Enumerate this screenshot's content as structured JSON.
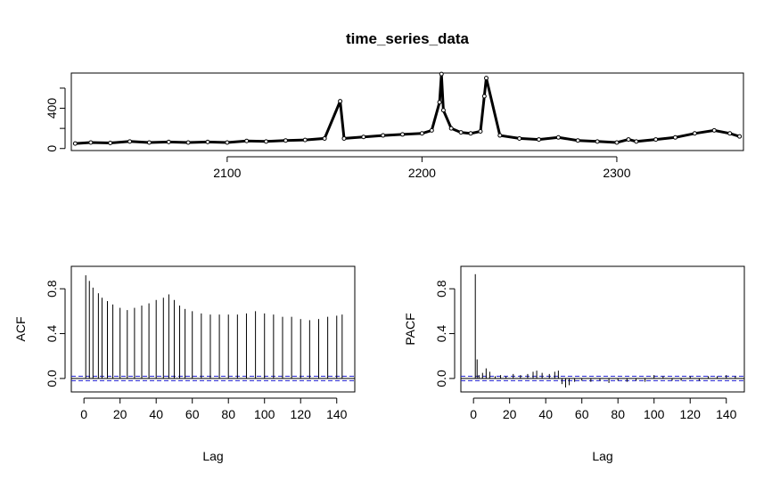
{
  "figure": {
    "title": "time_series_data"
  },
  "colors": {
    "series": "#000000",
    "confidence_band": "#1f1fd0",
    "background": "#ffffff"
  },
  "chart_data": [
    {
      "type": "line",
      "name": "time_series_data",
      "title": "time_series_data",
      "xlabel": "",
      "ylabel": "",
      "xlim": [
        2020,
        2365
      ],
      "ylim": [
        -20,
        750
      ],
      "x_ticks": [
        2100,
        2200,
        2300
      ],
      "x_tick_labels": [
        "2100",
        "2200",
        "2300"
      ],
      "y_ticks": [
        0,
        200,
        400,
        600
      ],
      "y_tick_labels": [
        "0",
        "",
        "400",
        ""
      ],
      "marker": "open-circle",
      "x": [
        2022,
        2030,
        2040,
        2050,
        2060,
        2070,
        2080,
        2090,
        2100,
        2110,
        2120,
        2130,
        2140,
        2150,
        2158,
        2160,
        2170,
        2180,
        2190,
        2200,
        2205,
        2209,
        2210,
        2211,
        2215,
        2220,
        2225,
        2230,
        2232,
        2233,
        2240,
        2250,
        2260,
        2270,
        2280,
        2290,
        2300,
        2306,
        2310,
        2320,
        2330,
        2340,
        2350,
        2358,
        2363
      ],
      "y": [
        50,
        60,
        55,
        70,
        60,
        65,
        60,
        65,
        60,
        75,
        70,
        80,
        85,
        100,
        470,
        100,
        115,
        130,
        140,
        150,
        180,
        460,
        740,
        380,
        200,
        160,
        150,
        170,
        520,
        700,
        130,
        100,
        90,
        110,
        80,
        70,
        60,
        90,
        70,
        90,
        110,
        150,
        180,
        150,
        120
      ]
    },
    {
      "type": "bar",
      "name": "acf",
      "title": "",
      "xlabel": "Lag",
      "ylabel": "ACF",
      "xlim": [
        -7,
        150
      ],
      "ylim": [
        -0.12,
        1.0
      ],
      "x_ticks": [
        0,
        20,
        40,
        60,
        80,
        100,
        120,
        140
      ],
      "y_ticks": [
        0.0,
        0.4,
        0.8
      ],
      "y_tick_labels": [
        "0.0",
        "0.4",
        "0.8"
      ],
      "confidence_bound": 0.02,
      "lags": [
        1,
        3,
        5,
        8,
        10,
        13,
        16,
        20,
        24,
        28,
        32,
        36,
        40,
        44,
        47,
        50,
        53,
        56,
        60,
        65,
        70,
        75,
        80,
        85,
        90,
        95,
        100,
        105,
        110,
        115,
        120,
        125,
        130,
        135,
        140,
        143
      ],
      "values": [
        0.92,
        0.87,
        0.81,
        0.76,
        0.72,
        0.69,
        0.66,
        0.63,
        0.61,
        0.63,
        0.65,
        0.67,
        0.7,
        0.72,
        0.75,
        0.7,
        0.65,
        0.62,
        0.6,
        0.58,
        0.57,
        0.57,
        0.57,
        0.57,
        0.58,
        0.6,
        0.58,
        0.57,
        0.55,
        0.55,
        0.53,
        0.52,
        0.53,
        0.55,
        0.56,
        0.57
      ]
    },
    {
      "type": "bar",
      "name": "pacf",
      "title": "",
      "xlabel": "Lag",
      "ylabel": "PACF",
      "xlim": [
        -7,
        150
      ],
      "ylim": [
        -0.12,
        1.0
      ],
      "x_ticks": [
        0,
        20,
        40,
        60,
        80,
        100,
        120,
        140
      ],
      "y_ticks": [
        0.0,
        0.4,
        0.8
      ],
      "y_tick_labels": [
        "0.0",
        "0.4",
        "0.8"
      ],
      "confidence_bound": 0.02,
      "lags": [
        1,
        2,
        3,
        5,
        7,
        9,
        12,
        15,
        18,
        22,
        26,
        30,
        33,
        35,
        38,
        42,
        45,
        47,
        49,
        51,
        53,
        56,
        60,
        65,
        70,
        75,
        80,
        85,
        90,
        95,
        100,
        105,
        110,
        115,
        120,
        125,
        130,
        135,
        140,
        145
      ],
      "values": [
        0.93,
        0.17,
        0.03,
        0.05,
        0.09,
        0.06,
        0.02,
        0.03,
        0.02,
        0.04,
        0.03,
        0.04,
        0.06,
        0.07,
        0.05,
        0.04,
        0.06,
        0.07,
        -0.05,
        -0.08,
        -0.06,
        -0.03,
        -0.02,
        -0.03,
        -0.02,
        -0.04,
        -0.02,
        -0.03,
        -0.02,
        -0.03,
        0.03,
        0.02,
        -0.02,
        -0.02,
        0.02,
        -0.02,
        0.02,
        0.02,
        0.03,
        0.02
      ]
    }
  ]
}
